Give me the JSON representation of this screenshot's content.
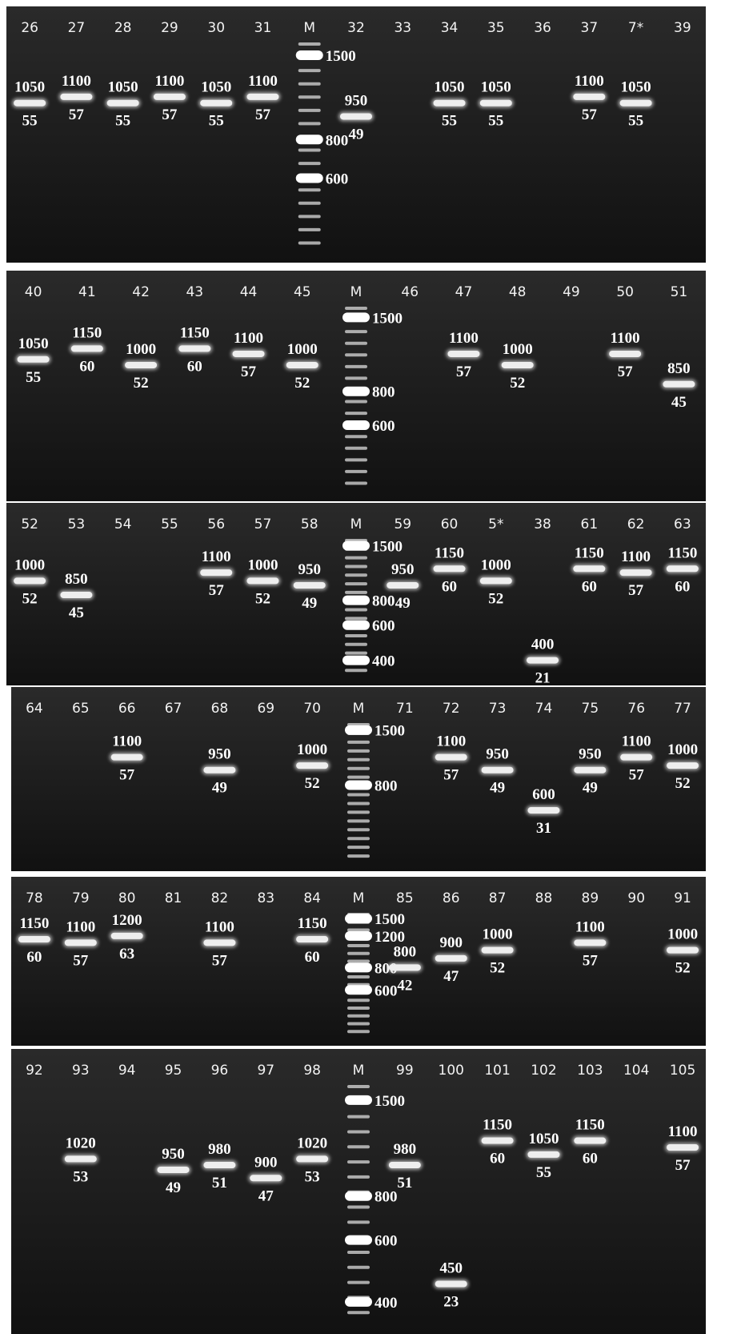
{
  "panels": [
    {
      "lanes": [
        {
          "label": "26",
          "size": 1050,
          "count": 55
        },
        {
          "label": "27",
          "size": 1100,
          "count": 57
        },
        {
          "label": "28",
          "size": 1050,
          "count": 55
        },
        {
          "label": "29",
          "size": 1100,
          "count": 57
        },
        {
          "label": "30",
          "size": 1050,
          "count": 55
        },
        {
          "label": "31",
          "size": 1100,
          "count": 57
        },
        {
          "label": "M",
          "ladder": [
            1500,
            800,
            600
          ]
        },
        {
          "label": "32",
          "size": 950,
          "count": 49
        },
        {
          "label": "33"
        },
        {
          "label": "34",
          "size": 1050,
          "count": 55
        },
        {
          "label": "35",
          "size": 1050,
          "count": 55
        },
        {
          "label": "36"
        },
        {
          "label": "37",
          "size": 1100,
          "count": 57
        },
        {
          "label": "7*",
          "size": 1050,
          "count": 55
        },
        {
          "label": "39"
        }
      ]
    },
    {
      "lanes": [
        {
          "label": "40",
          "size": 1050,
          "count": 55
        },
        {
          "label": "41",
          "size": 1150,
          "count": 60
        },
        {
          "label": "42",
          "size": 1000,
          "count": 52
        },
        {
          "label": "43",
          "size": 1150,
          "count": 60
        },
        {
          "label": "44",
          "size": 1100,
          "count": 57
        },
        {
          "label": "45",
          "size": 1000,
          "count": 52
        },
        {
          "label": "M",
          "ladder": [
            1500,
            800,
            600
          ]
        },
        {
          "label": "46"
        },
        {
          "label": "47",
          "size": 1100,
          "count": 57
        },
        {
          "label": "48",
          "size": 1000,
          "count": 52
        },
        {
          "label": "49"
        },
        {
          "label": "50",
          "size": 1100,
          "count": 57
        },
        {
          "label": "51",
          "size": 850,
          "count": 45
        }
      ]
    },
    {
      "lanes": [
        {
          "label": "52",
          "size": 1000,
          "count": 52
        },
        {
          "label": "53",
          "size": 850,
          "count": 45
        },
        {
          "label": "54"
        },
        {
          "label": "55"
        },
        {
          "label": "56",
          "size": 1100,
          "count": 57
        },
        {
          "label": "57",
          "size": 1000,
          "count": 52
        },
        {
          "label": "58",
          "size": 950,
          "count": 49
        },
        {
          "label": "M",
          "ladder": [
            1500,
            800,
            600,
            400
          ]
        },
        {
          "label": "59",
          "size": 950,
          "count": 49
        },
        {
          "label": "60",
          "size": 1150,
          "count": 60
        },
        {
          "label": "5*",
          "size": 1000,
          "count": 52
        },
        {
          "label": "38",
          "size": 400,
          "count": 21
        },
        {
          "label": "61",
          "size": 1150,
          "count": 60
        },
        {
          "label": "62",
          "size": 1100,
          "count": 57
        },
        {
          "label": "63",
          "size": 1150,
          "count": 60
        }
      ]
    },
    {
      "lanes": [
        {
          "label": "64"
        },
        {
          "label": "65"
        },
        {
          "label": "66",
          "size": 1100,
          "count": 57
        },
        {
          "label": "67"
        },
        {
          "label": "68",
          "size": 950,
          "count": 49
        },
        {
          "label": "69"
        },
        {
          "label": "70",
          "size": 1000,
          "count": 52
        },
        {
          "label": "M",
          "ladder": [
            1500,
            800
          ]
        },
        {
          "label": "71"
        },
        {
          "label": "72",
          "size": 1100,
          "count": 57
        },
        {
          "label": "73",
          "size": 950,
          "count": 49
        },
        {
          "label": "74",
          "size": 600,
          "count": 31
        },
        {
          "label": "75",
          "size": 950,
          "count": 49
        },
        {
          "label": "76",
          "size": 1100,
          "count": 57
        },
        {
          "label": "77",
          "size": 1000,
          "count": 52
        }
      ]
    },
    {
      "lanes": [
        {
          "label": "78",
          "size": 1150,
          "count": 60
        },
        {
          "label": "79",
          "size": 1100,
          "count": 57
        },
        {
          "label": "80",
          "size": 1200,
          "count": 63
        },
        {
          "label": "81"
        },
        {
          "label": "82",
          "size": 1100,
          "count": 57
        },
        {
          "label": "83"
        },
        {
          "label": "84",
          "size": 1150,
          "count": 60
        },
        {
          "label": "M",
          "ladder": [
            1500,
            1200,
            800,
            600
          ]
        },
        {
          "label": "85",
          "size": 800,
          "count": 42
        },
        {
          "label": "86",
          "size": 900,
          "count": 47
        },
        {
          "label": "87",
          "size": 1000,
          "count": 52
        },
        {
          "label": "88"
        },
        {
          "label": "89",
          "size": 1100,
          "count": 57
        },
        {
          "label": "90"
        },
        {
          "label": "91",
          "size": 1000,
          "count": 52
        }
      ]
    },
    {
      "lanes": [
        {
          "label": "92"
        },
        {
          "label": "93",
          "size": 1020,
          "count": 53
        },
        {
          "label": "94"
        },
        {
          "label": "95",
          "size": 950,
          "count": 49
        },
        {
          "label": "96",
          "size": 980,
          "count": 51
        },
        {
          "label": "97",
          "size": 900,
          "count": 47
        },
        {
          "label": "98",
          "size": 1020,
          "count": 53
        },
        {
          "label": "M",
          "ladder": [
            1500,
            800,
            600,
            400
          ]
        },
        {
          "label": "99",
          "size": 980,
          "count": 51
        },
        {
          "label": "100",
          "size": 450,
          "count": 23
        },
        {
          "label": "101",
          "size": 1150,
          "count": 60
        },
        {
          "label": "102",
          "size": 1050,
          "count": 55
        },
        {
          "label": "103",
          "size": 1150,
          "count": 60
        },
        {
          "label": "104"
        },
        {
          "label": "105",
          "size": 1100,
          "count": 57
        }
      ]
    }
  ]
}
